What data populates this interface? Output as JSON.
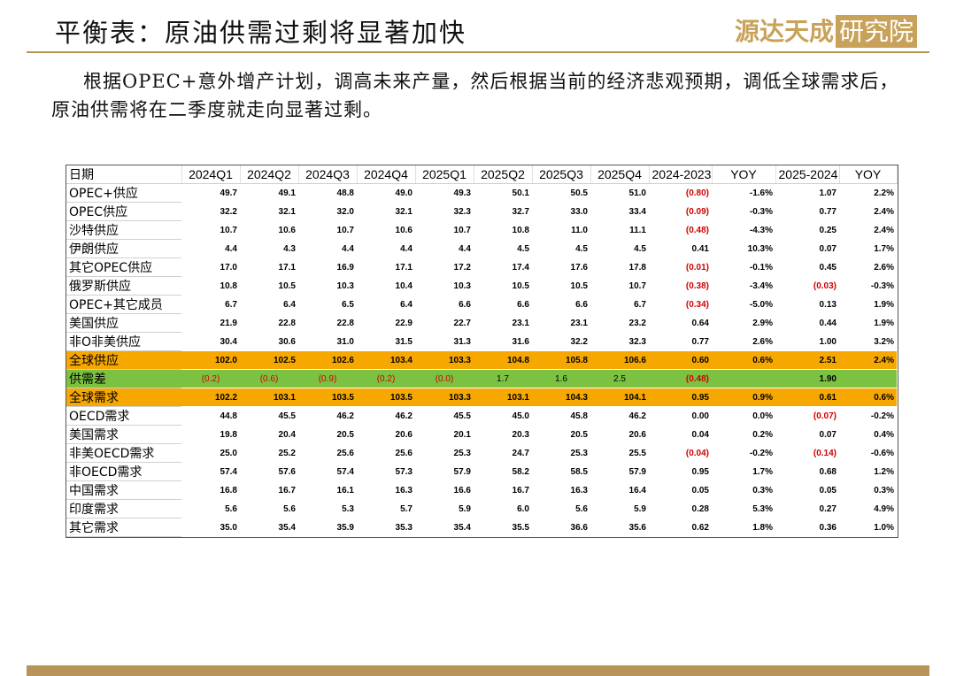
{
  "header": {
    "title": "平衡表：原油供需过剩将显著加快",
    "logo": "源达天成",
    "logo_box": "研究院"
  },
  "paragraph": "根据OPEC+意外增产计划，调高未来产量，然后根据当前的经济悲观预期，调低全球需求后，原油供需将在二季度就走向显著过剩。",
  "table": {
    "header": [
      "日期",
      "2024Q1",
      "2024Q2",
      "2024Q3",
      "2024Q4",
      "2025Q1",
      "2025Q2",
      "2025Q3",
      "2025Q4",
      "2024-2023",
      "YOY",
      "2025-2024",
      "YOY"
    ],
    "rows": [
      [
        "OPEC+供应",
        "49.7",
        "49.1",
        "48.8",
        "49.0",
        "49.3",
        "50.1",
        "50.5",
        "51.0",
        "(0.80)",
        "-1.6%",
        "1.07",
        "2.2%"
      ],
      [
        "OPEC供应",
        "32.2",
        "32.1",
        "32.0",
        "32.1",
        "32.3",
        "32.7",
        "33.0",
        "33.4",
        "(0.09)",
        "-0.3%",
        "0.77",
        "2.4%"
      ],
      [
        "沙特供应",
        "10.7",
        "10.6",
        "10.7",
        "10.6",
        "10.7",
        "10.8",
        "11.0",
        "11.1",
        "(0.48)",
        "-4.3%",
        "0.25",
        "2.4%"
      ],
      [
        "伊朗供应",
        "4.4",
        "4.3",
        "4.4",
        "4.4",
        "4.4",
        "4.5",
        "4.5",
        "4.5",
        "0.41",
        "10.3%",
        "0.07",
        "1.7%"
      ],
      [
        "其它OPEC供应",
        "17.0",
        "17.1",
        "16.9",
        "17.1",
        "17.2",
        "17.4",
        "17.6",
        "17.8",
        "(0.01)",
        "-0.1%",
        "0.45",
        "2.6%"
      ],
      [
        "俄罗斯供应",
        "10.8",
        "10.5",
        "10.3",
        "10.4",
        "10.3",
        "10.5",
        "10.5",
        "10.7",
        "(0.38)",
        "-3.4%",
        "(0.03)",
        "-0.3%"
      ],
      [
        "OPEC+其它成员",
        "6.7",
        "6.4",
        "6.5",
        "6.4",
        "6.6",
        "6.6",
        "6.6",
        "6.7",
        "(0.34)",
        "-5.0%",
        "0.13",
        "1.9%"
      ],
      [
        "美国供应",
        "21.9",
        "22.8",
        "22.8",
        "22.9",
        "22.7",
        "23.1",
        "23.1",
        "23.2",
        "0.64",
        "2.9%",
        "0.44",
        "1.9%"
      ],
      [
        "非O非美供应",
        "30.4",
        "30.6",
        "31.0",
        "31.5",
        "31.3",
        "31.6",
        "32.2",
        "32.3",
        "0.77",
        "2.6%",
        "1.00",
        "3.2%"
      ],
      [
        "全球供应",
        "102.0",
        "102.5",
        "102.6",
        "103.4",
        "103.3",
        "104.8",
        "105.8",
        "106.6",
        "0.60",
        "0.6%",
        "2.51",
        "2.4%"
      ],
      [
        "供需差",
        "(0.2)",
        "(0.6)",
        "(0.9)",
        "(0.2)",
        "(0.0)",
        "1.7",
        "1.6",
        "2.5",
        "(0.48)",
        null,
        "1.90",
        null
      ],
      [
        "全球需求",
        "102.2",
        "103.1",
        "103.5",
        "103.5",
        "103.3",
        "103.1",
        "104.3",
        "104.1",
        "0.95",
        "0.9%",
        "0.61",
        "0.6%"
      ],
      [
        "OECD需求",
        "44.8",
        "45.5",
        "46.2",
        "46.2",
        "45.5",
        "45.0",
        "45.8",
        "46.2",
        "0.00",
        "0.0%",
        "(0.07)",
        "-0.2%"
      ],
      [
        "美国需求",
        "19.8",
        "20.4",
        "20.5",
        "20.6",
        "20.1",
        "20.3",
        "20.5",
        "20.6",
        "0.04",
        "0.2%",
        "0.07",
        "0.4%"
      ],
      [
        "非美OECD需求",
        "25.0",
        "25.2",
        "25.6",
        "25.6",
        "25.3",
        "24.7",
        "25.3",
        "25.5",
        "(0.04)",
        "-0.2%",
        "(0.14)",
        "-0.6%"
      ],
      [
        "非OECD需求",
        "57.4",
        "57.6",
        "57.4",
        "57.3",
        "57.9",
        "58.2",
        "58.5",
        "57.9",
        "0.95",
        "1.7%",
        "0.68",
        "1.2%"
      ],
      [
        "中国需求",
        "16.8",
        "16.7",
        "16.1",
        "16.3",
        "16.6",
        "16.7",
        "16.3",
        "16.4",
        "0.05",
        "0.3%",
        "0.05",
        "0.3%"
      ],
      [
        "印度需求",
        "5.6",
        "5.6",
        "5.3",
        "5.7",
        "5.9",
        "6.0",
        "5.6",
        "5.9",
        "0.28",
        "5.3%",
        "0.27",
        "4.9%"
      ],
      [
        "其它需求",
        "35.0",
        "35.4",
        "35.9",
        "35.3",
        "35.4",
        "35.5",
        "36.6",
        "35.6",
        "0.62",
        "1.8%",
        "0.36",
        "1.0%"
      ]
    ]
  }
}
